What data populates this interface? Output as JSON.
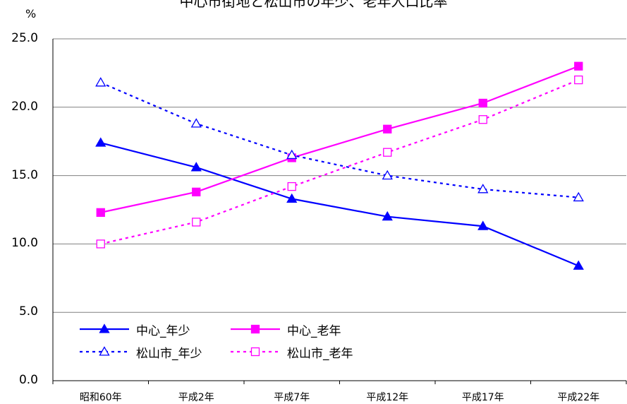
{
  "chart_data": {
    "type": "line",
    "title": "中心市街地と松山市の年少、老年人口比率",
    "ylabel": "%",
    "ylim": [
      0,
      25
    ],
    "yticks": [
      "0.0",
      "5.0",
      "10.0",
      "15.0",
      "20.0",
      "25.0"
    ],
    "categories": [
      "昭和60年",
      "平成2年",
      "平成7年",
      "平成12年",
      "平成17年",
      "平成22年"
    ],
    "grid": "horizontal",
    "legend_position": "lower-left (inside plot)",
    "series": [
      {
        "name": "中心_年少",
        "color": "#0000ff",
        "line": "solid",
        "marker": "filled-triangle",
        "values": [
          17.4,
          15.6,
          13.3,
          12.0,
          11.3,
          8.4
        ]
      },
      {
        "name": "中心_老年",
        "color": "#ff00ff",
        "line": "solid",
        "marker": "filled-square",
        "values": [
          12.3,
          13.8,
          16.3,
          18.4,
          20.3,
          23.0
        ]
      },
      {
        "name": "松山市_年少",
        "color": "#0000ff",
        "line": "dotted",
        "marker": "open-triangle",
        "values": [
          21.8,
          18.8,
          16.5,
          15.0,
          14.0,
          13.4
        ]
      },
      {
        "name": "松山市_老年",
        "color": "#ff00ff",
        "line": "dotted",
        "marker": "open-square",
        "values": [
          10.0,
          11.6,
          14.2,
          16.7,
          19.1,
          22.0
        ]
      }
    ]
  }
}
